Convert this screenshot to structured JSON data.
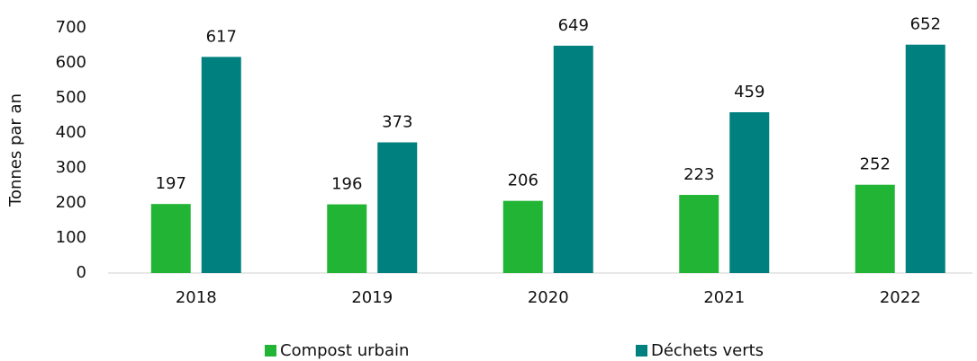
{
  "chart_data": {
    "type": "bar",
    "y_label": "Tonnes par an",
    "categories": [
      "2018",
      "2019",
      "2020",
      "2021",
      "2022"
    ],
    "series": [
      {
        "name": "Compost urbain",
        "color": "#22b535",
        "values": [
          197,
          196,
          206,
          223,
          252
        ]
      },
      {
        "name": "Déchets verts",
        "color": "#00807f",
        "values": [
          617,
          373,
          649,
          459,
          652
        ]
      }
    ],
    "ylim": [
      0,
      700
    ],
    "yticks": [
      0,
      100,
      200,
      300,
      400,
      500,
      600,
      700
    ],
    "grid": false,
    "legend": "bottom"
  }
}
